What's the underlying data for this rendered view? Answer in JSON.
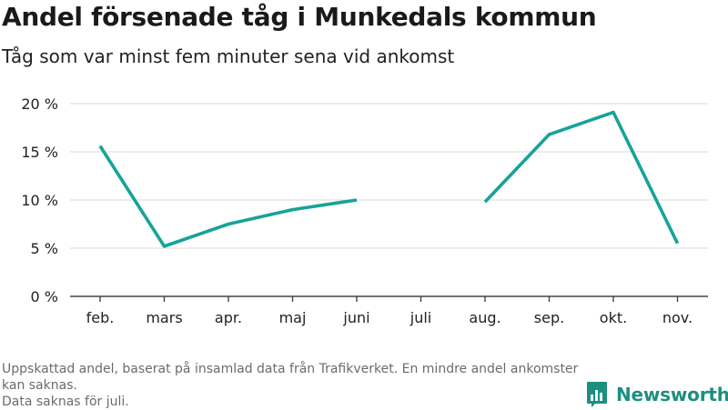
{
  "title": "Andel försenade tåg i Munkedals kommun",
  "subtitle": "Tåg som var minst fem minuter sena vid ankomst",
  "footnote": {
    "line1": "Uppskattad andel, baserat på insamlad data från Trafikverket. En mindre andel ankomster kan saknas.",
    "line2": "Data saknas för juli."
  },
  "brand": {
    "name": "Newsworthy",
    "color": "#1b8f80",
    "line_color": "#17a398"
  },
  "chart_data": {
    "type": "line",
    "categories": [
      "feb.",
      "mars",
      "apr.",
      "maj",
      "juni",
      "juli",
      "aug.",
      "sep.",
      "okt.",
      "nov."
    ],
    "series": [
      {
        "values": [
          15.6,
          5.2,
          7.5,
          9.0,
          10.0,
          null,
          9.8,
          16.8,
          19.1,
          5.5
        ]
      }
    ],
    "y_ticks": [
      "0 %",
      "5 %",
      "10 %",
      "15 %",
      "20 %"
    ],
    "y_tick_values": [
      0,
      5,
      10,
      15,
      20
    ],
    "ylim": [
      0,
      20
    ],
    "grid": true
  }
}
